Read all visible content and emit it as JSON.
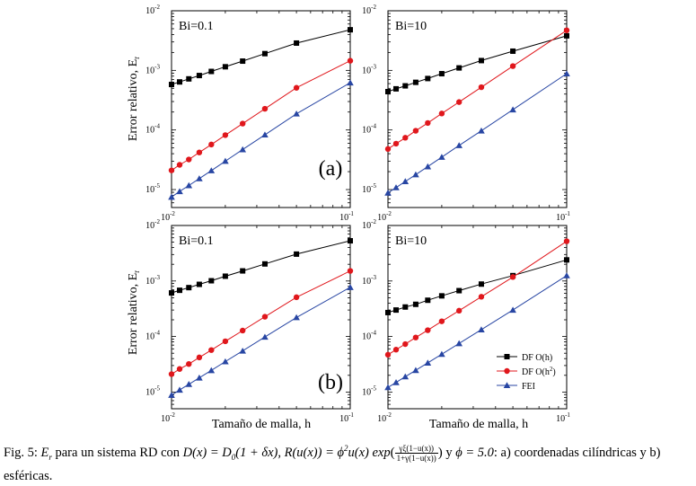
{
  "chart_data": [
    {
      "type": "line",
      "panel": "top-left",
      "label": "Bi=0.1",
      "x": [
        0.01,
        0.0111,
        0.0125,
        0.0143,
        0.0167,
        0.02,
        0.025,
        0.0333,
        0.05,
        0.1
      ],
      "series": [
        {
          "name": "DF O(h)",
          "color": "#000000",
          "marker": "square",
          "values": [
            0.00058,
            0.00064,
            0.00072,
            0.00082,
            0.00096,
            0.00115,
            0.00143,
            0.00191,
            0.00287,
            0.0048
          ]
        },
        {
          "name": "DF O(h²)",
          "color": "#e0171c",
          "marker": "circle",
          "values": [
            2.1e-05,
            2.6e-05,
            3.2e-05,
            4.2e-05,
            5.7e-05,
            8.2e-05,
            0.000128,
            0.000227,
            0.00051,
            0.00145
          ]
        },
        {
          "name": "FEI",
          "color": "#2846a3",
          "marker": "triangle",
          "values": [
            7.5e-06,
            9.3e-06,
            1.17e-05,
            1.53e-05,
            2.08e-05,
            3e-05,
            4.7e-05,
            8.3e-05,
            0.000187,
            0.00062
          ]
        }
      ],
      "xscale": "log",
      "yscale": "log",
      "xlim": [
        0.01,
        0.1
      ],
      "ylim": [
        5e-06,
        0.01
      ],
      "ylabel": "Error relativo, Er",
      "xlabel": "",
      "annotation": "(a)"
    },
    {
      "type": "line",
      "panel": "top-right",
      "label": "Bi=10",
      "x": [
        0.01,
        0.0111,
        0.0125,
        0.0143,
        0.0167,
        0.02,
        0.025,
        0.0333,
        0.05,
        0.1
      ],
      "series": [
        {
          "name": "DF O(h)",
          "color": "#000000",
          "marker": "square",
          "values": [
            0.00044,
            0.00049,
            0.00055,
            0.00063,
            0.00073,
            0.00088,
            0.0011,
            0.00146,
            0.0021,
            0.0038
          ]
        },
        {
          "name": "DF O(h²)",
          "color": "#e0171c",
          "marker": "circle",
          "values": [
            4.8e-05,
            5.9e-05,
            7.4e-05,
            9.7e-05,
            0.000131,
            0.000189,
            0.000294,
            0.000522,
            0.00118,
            0.0047
          ]
        },
        {
          "name": "FEI",
          "color": "#2846a3",
          "marker": "triangle",
          "values": [
            8.8e-06,
            1.08e-05,
            1.37e-05,
            1.78e-05,
            2.43e-05,
            3.5e-05,
            5.5e-05,
            9.7e-05,
            0.000219,
            0.00088
          ]
        }
      ],
      "xscale": "log",
      "yscale": "log",
      "xlim": [
        0.01,
        0.1
      ],
      "ylim": [
        5e-06,
        0.01
      ]
    },
    {
      "type": "line",
      "panel": "bottom-left",
      "label": "Bi=0.1",
      "x": [
        0.01,
        0.0111,
        0.0125,
        0.0143,
        0.0167,
        0.02,
        0.025,
        0.0333,
        0.05,
        0.1
      ],
      "series": [
        {
          "name": "DF O(h)",
          "color": "#000000",
          "marker": "square",
          "values": [
            0.00061,
            0.00068,
            0.00076,
            0.00087,
            0.00101,
            0.00122,
            0.00152,
            0.00203,
            0.00305,
            0.0053
          ]
        },
        {
          "name": "DF O(h²)",
          "color": "#e0171c",
          "marker": "circle",
          "values": [
            2.1e-05,
            2.6e-05,
            3.2e-05,
            4.2e-05,
            5.7e-05,
            8.2e-05,
            0.000128,
            0.000227,
            0.00051,
            0.00152
          ]
        },
        {
          "name": "FEI",
          "color": "#2846a3",
          "marker": "triangle",
          "values": [
            8.8e-06,
            1.09e-05,
            1.38e-05,
            1.8e-05,
            2.45e-05,
            3.53e-05,
            5.5e-05,
            9.8e-05,
            0.00022,
            0.00077
          ]
        }
      ],
      "xscale": "log",
      "yscale": "log",
      "xlim": [
        0.01,
        0.1
      ],
      "ylim": [
        5e-06,
        0.01
      ],
      "ylabel": "Error relativo, Er",
      "xlabel": "Tamaño de malla, h",
      "annotation": "(b)"
    },
    {
      "type": "line",
      "panel": "bottom-right",
      "label": "Bi=10",
      "x": [
        0.01,
        0.0111,
        0.0125,
        0.0143,
        0.0167,
        0.02,
        0.025,
        0.0333,
        0.05,
        0.1
      ],
      "series": [
        {
          "name": "DF O(h)",
          "color": "#000000",
          "marker": "square",
          "values": [
            0.00027,
            0.0003,
            0.00034,
            0.00038,
            0.00045,
            0.00054,
            0.00067,
            0.00088,
            0.00125,
            0.0024
          ]
        },
        {
          "name": "DF O(h²)",
          "color": "#e0171c",
          "marker": "circle",
          "values": [
            4.7e-05,
            5.8e-05,
            7.3e-05,
            9.6e-05,
            0.00013,
            0.000188,
            0.000292,
            0.00052,
            0.00118,
            0.0052
          ]
        },
        {
          "name": "FEI",
          "color": "#2846a3",
          "marker": "triangle",
          "values": [
            1.21e-05,
            1.49e-05,
            1.89e-05,
            2.46e-05,
            3.35e-05,
            4.8e-05,
            7.5e-05,
            0.000133,
            0.0003,
            0.00125
          ]
        }
      ],
      "xscale": "log",
      "yscale": "log",
      "xlim": [
        0.01,
        0.1
      ],
      "ylim": [
        5e-06,
        0.01
      ],
      "xlabel": "Tamaño de malla, h",
      "legend": [
        "DF O(h)",
        "DF O(h²)",
        "FEI"
      ],
      "legend_position": "bottom-right"
    }
  ],
  "axis": {
    "xticks": [
      {
        "base": "10",
        "exp": "-2"
      },
      {
        "base": "10",
        "exp": "-1"
      }
    ],
    "yticks": [
      {
        "base": "10",
        "exp": "-5"
      },
      {
        "base": "10",
        "exp": "-4"
      },
      {
        "base": "10",
        "exp": "-3"
      },
      {
        "base": "10",
        "exp": "-2"
      }
    ],
    "ylabel_main": "Error relativo, E",
    "ylabel_sub": "r",
    "xlabel": "Tamaño de malla, h"
  },
  "legend": {
    "items": [
      {
        "main": "DF O(h)",
        "sup": ""
      },
      {
        "main": "DF O(h",
        "sup": "2",
        "tail": ")"
      },
      {
        "main": "FEI",
        "sup": ""
      }
    ]
  },
  "caption": {
    "fig": "Fig. 5:",
    "t1": "E",
    "t1sub": "r",
    "t2": " para un sistema RD con ",
    "t3": "D(x) = D",
    "t3sub": "0",
    "t4": "(1 + δx), ",
    "t5": "R(u(x)) = ϕ",
    "t5sup": "2",
    "t6": "u(x) exp",
    "frac_num": "γξ(1−u(x))",
    "frac_den": "1+γ(1−u(x))",
    "t7": " y ",
    "t8": "ϕ = 5.0",
    "t9": ": a) coordenadas cilíndricas y b) esféricas."
  }
}
